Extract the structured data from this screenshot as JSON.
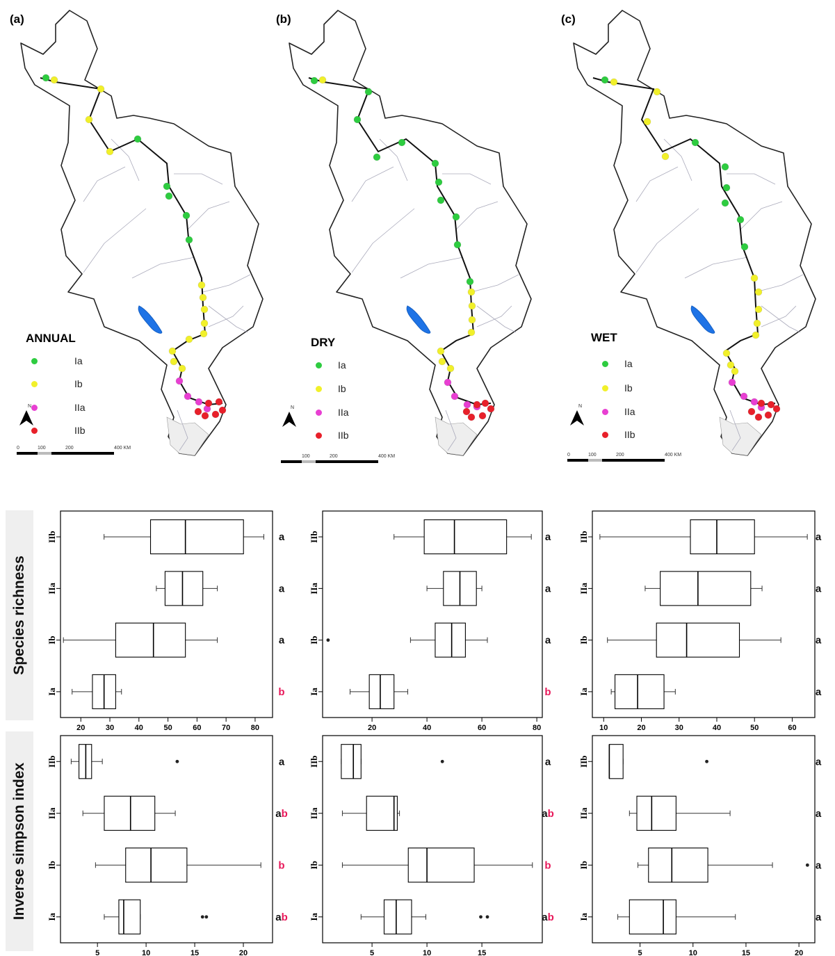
{
  "maps": [
    {
      "panel_label": "(a)",
      "season_title": "ANNUAL",
      "scale": {
        "ticks": [
          "0",
          "100",
          "200",
          "400 KM"
        ]
      }
    },
    {
      "panel_label": "(b)",
      "season_title": "DRY",
      "scale": {
        "ticks": [
          "100",
          "200",
          "400 KM"
        ]
      }
    },
    {
      "panel_label": "(c)",
      "season_title": "WET",
      "scale": {
        "ticks": [
          "0",
          "100",
          "200",
          "400 KM"
        ]
      }
    }
  ],
  "legend": [
    {
      "label": "Ia",
      "color": "#2ecc40"
    },
    {
      "label": "Ib",
      "color": "#f1f02a"
    },
    {
      "label": "IIa",
      "color": "#e83fd2"
    },
    {
      "label": "IIb",
      "color": "#e8202a"
    }
  ],
  "north_label": "N",
  "row_labels": {
    "richness": "Species richness",
    "simpson": "Inverse simpson index"
  },
  "chart_data": [
    {
      "type": "boxplot",
      "id": "richness-annual",
      "xticks": [
        20,
        30,
        40,
        50,
        60,
        70,
        80
      ],
      "xlim": [
        13,
        86
      ],
      "categories": [
        "Ia",
        "Ib",
        "IIa",
        "IIb"
      ],
      "boxes": [
        {
          "min": 17,
          "q1": 24,
          "median": 28,
          "q3": 32,
          "max": 34,
          "outliers": []
        },
        {
          "min": 14,
          "q1": 32,
          "median": 45,
          "q3": 56,
          "max": 67,
          "outliers": []
        },
        {
          "min": 46,
          "q1": 49,
          "median": 55,
          "q3": 62,
          "max": 67,
          "outliers": []
        },
        {
          "min": 28,
          "q1": 44,
          "median": 56,
          "q3": 76,
          "max": 83,
          "outliers": []
        }
      ],
      "letters": [
        "b",
        "a",
        "a",
        "a"
      ]
    },
    {
      "type": "boxplot",
      "id": "richness-dry",
      "xticks": [
        20,
        40,
        60,
        80
      ],
      "xlim": [
        2,
        82
      ],
      "categories": [
        "Ia",
        "Ib",
        "IIa",
        "IIb"
      ],
      "boxes": [
        {
          "min": 12,
          "q1": 19,
          "median": 23,
          "q3": 28,
          "max": 33,
          "outliers": []
        },
        {
          "min": 34,
          "q1": 43,
          "median": 49,
          "q3": 54,
          "max": 62,
          "outliers": [
            4
          ]
        },
        {
          "min": 40,
          "q1": 46,
          "median": 52,
          "q3": 58,
          "max": 60,
          "outliers": []
        },
        {
          "min": 28,
          "q1": 39,
          "median": 50,
          "q3": 69,
          "max": 78,
          "outliers": []
        }
      ],
      "letters": [
        "b",
        "a",
        "a",
        "a"
      ]
    },
    {
      "type": "boxplot",
      "id": "richness-wet",
      "xticks": [
        10,
        20,
        30,
        40,
        50,
        60
      ],
      "xlim": [
        7,
        66
      ],
      "categories": [
        "Ia",
        "Ib",
        "IIa",
        "IIb"
      ],
      "boxes": [
        {
          "min": 12,
          "q1": 13,
          "median": 19,
          "q3": 26,
          "max": 29,
          "outliers": []
        },
        {
          "min": 11,
          "q1": 24,
          "median": 32,
          "q3": 46,
          "max": 57,
          "outliers": []
        },
        {
          "min": 21,
          "q1": 25,
          "median": 35,
          "q3": 49,
          "max": 52,
          "outliers": []
        },
        {
          "min": 9,
          "q1": 33,
          "median": 40,
          "q3": 50,
          "max": 64,
          "outliers": []
        }
      ],
      "letters": [
        "a",
        "a",
        "a",
        "a"
      ]
    },
    {
      "type": "boxplot",
      "id": "simpson-annual",
      "xticks": [
        5,
        10,
        15,
        20
      ],
      "xlim": [
        1.2,
        23
      ],
      "categories": [
        "Ia",
        "Ib",
        "IIa",
        "IIb"
      ],
      "boxes": [
        {
          "min": 5.7,
          "q1": 7.2,
          "median": 7.7,
          "q3": 9.4,
          "max": 9.4,
          "outliers": [
            15.8,
            16.2
          ]
        },
        {
          "min": 4.8,
          "q1": 7.9,
          "median": 10.5,
          "q3": 14.2,
          "max": 21.8,
          "outliers": []
        },
        {
          "min": 3.5,
          "q1": 5.7,
          "median": 8.4,
          "q3": 10.9,
          "max": 13.0,
          "outliers": []
        },
        {
          "min": 2.3,
          "q1": 3.1,
          "median": 3.8,
          "q3": 4.4,
          "max": 5.5,
          "outliers": [
            13.2
          ]
        }
      ],
      "letters": [
        "ab",
        "b",
        "ab",
        "a"
      ]
    },
    {
      "type": "boxplot",
      "id": "simpson-dry",
      "xticks": [
        5,
        10,
        15
      ],
      "xlim": [
        0.5,
        20.5
      ],
      "categories": [
        "Ia",
        "Ib",
        "IIa",
        "IIb"
      ],
      "boxes": [
        {
          "min": 4.0,
          "q1": 6.1,
          "median": 7.2,
          "q3": 8.6,
          "max": 9.9,
          "outliers": [
            14.9,
            15.5
          ]
        },
        {
          "min": 2.3,
          "q1": 8.3,
          "median": 10.0,
          "q3": 14.3,
          "max": 19.6,
          "outliers": []
        },
        {
          "min": 2.3,
          "q1": 4.5,
          "median": 7.0,
          "q3": 7.3,
          "max": 7.5,
          "outliers": []
        },
        {
          "min": 2.2,
          "q1": 2.2,
          "median": 3.3,
          "q3": 4.0,
          "max": 4.0,
          "outliers": [
            11.4
          ]
        }
      ],
      "letters": [
        "ab",
        "b",
        "ab",
        "a"
      ]
    },
    {
      "type": "boxplot",
      "id": "simpson-wet",
      "xticks": [
        5,
        10,
        15,
        20
      ],
      "xlim": [
        0.5,
        21.5
      ],
      "categories": [
        "Ia",
        "Ib",
        "IIa",
        "IIb"
      ],
      "boxes": [
        {
          "min": 2.9,
          "q1": 4.0,
          "median": 7.2,
          "q3": 8.4,
          "max": 14.0,
          "outliers": []
        },
        {
          "min": 4.8,
          "q1": 5.8,
          "median": 8.0,
          "q3": 11.4,
          "max": 17.5,
          "outliers": [
            20.8
          ]
        },
        {
          "min": 4.0,
          "q1": 4.7,
          "median": 6.1,
          "q3": 8.4,
          "max": 13.5,
          "outliers": []
        },
        {
          "min": 2.1,
          "q1": 2.1,
          "median": 2.1,
          "q3": 3.4,
          "max": 3.4,
          "outliers": [
            11.3
          ]
        }
      ],
      "letters": [
        "a",
        "a",
        "a",
        "a"
      ]
    }
  ]
}
